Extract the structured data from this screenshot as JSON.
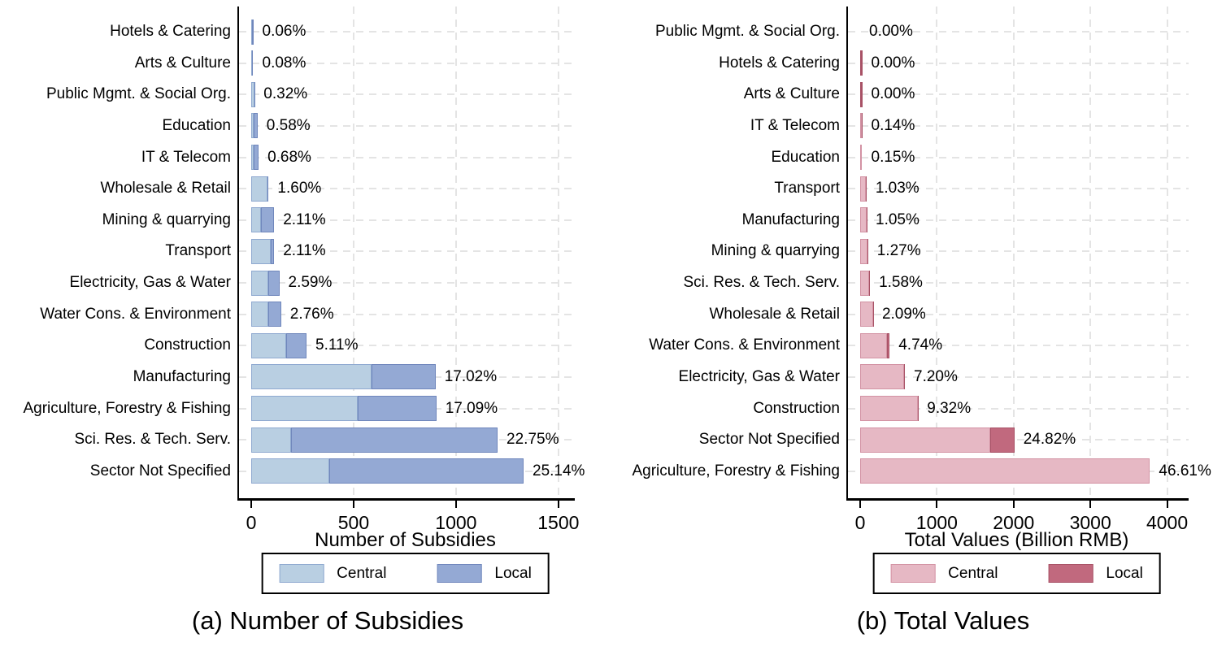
{
  "figure": {
    "background": "#ffffff",
    "captions": [
      "(a) Number of Subsidies",
      "(b) Total Values"
    ]
  },
  "chart_data": [
    {
      "type": "bar",
      "orientation": "horizontal",
      "stacked": true,
      "caption": "(a) Number of Subsidies",
      "xlabel": "Number of Subsidies",
      "xticks": [
        0,
        500,
        1000,
        1500
      ],
      "xlim": [
        0,
        1580
      ],
      "grid": true,
      "legend_position": "bottom-center",
      "categories": [
        "Hotels & Catering",
        "Arts & Culture",
        "Public Mgmt. & Social Org.",
        "Education",
        "IT & Telecom",
        "Wholesale & Retail",
        "Mining & quarrying",
        "Transport",
        "Electricity, Gas & Water",
        "Water Cons. & Environment",
        "Construction",
        "Manufacturing",
        "Agriculture, Forestry & Fishing",
        "Sci. Res. & Tech. Serv.",
        "Sector Not Specified"
      ],
      "series": [
        {
          "name": "Central",
          "values": [
            1.5,
            2,
            14,
            12,
            12,
            78,
            46,
            97,
            83,
            83,
            172,
            586,
            520,
            196,
            381
          ]
        },
        {
          "name": "Local",
          "values": [
            1.7,
            2.2,
            3,
            19,
            24,
            7,
            66,
            15,
            54,
            63,
            98,
            314,
            384,
            1007,
            949
          ]
        }
      ],
      "bar_labels": [
        "0.06%",
        "0.08%",
        "0.32%",
        "0.58%",
        "0.68%",
        "1.60%",
        "2.11%",
        "2.11%",
        "2.59%",
        "2.76%",
        "5.11%",
        "17.02%",
        "17.09%",
        "22.75%",
        "25.14%"
      ],
      "colors": {
        "central_fill": "#b9cfe2",
        "central_border": "#8fa9d0",
        "local_fill": "#94a9d4",
        "local_border": "#7087bc",
        "grid": "#e4e4e4",
        "axis": "#000000"
      }
    },
    {
      "type": "bar",
      "orientation": "horizontal",
      "stacked": true,
      "caption": "(b) Total Values",
      "xlabel": "Total Values (Billion RMB)",
      "xticks": [
        0,
        1000,
        2000,
        3000,
        4000
      ],
      "xlim": [
        0,
        4280
      ],
      "grid": true,
      "legend_position": "bottom-center",
      "categories": [
        "Public Mgmt. & Social Org.",
        "Hotels & Catering",
        "Arts & Culture",
        "IT & Telecom",
        "Education",
        "Transport",
        "Manufacturing",
        "Mining & quarrying",
        "Sci. Res. & Tech. Serv.",
        "Wholesale & Retail",
        "Water Cons. & Environment",
        "Electricity, Gas & Water",
        "Construction",
        "Sector Not Specified",
        "Agriculture, Forestry & Fishing"
      ],
      "series": [
        {
          "name": "Central",
          "values": [
            0,
            0,
            0,
            11,
            12,
            78,
            80,
            95,
            115,
            165,
            345,
            575,
            748,
            1693,
            3776
          ]
        },
        {
          "name": "Local",
          "values": [
            0,
            2,
            3,
            0.4,
            0.2,
            5,
            5,
            8,
            13,
            4,
            39,
            8,
            7,
            317,
            0
          ]
        }
      ],
      "bar_labels": [
        "0.00%",
        "0.00%",
        "0.00%",
        "0.14%",
        "0.15%",
        "1.03%",
        "1.05%",
        "1.27%",
        "1.58%",
        "2.09%",
        "4.74%",
        "7.20%",
        "9.32%",
        "24.82%",
        "46.61%"
      ],
      "colors": {
        "central_fill": "#e6b8c4",
        "central_border": "#d393a4",
        "local_fill": "#c1697e",
        "local_border": "#a85266",
        "grid": "#e4e4e4",
        "axis": "#000000"
      }
    }
  ]
}
